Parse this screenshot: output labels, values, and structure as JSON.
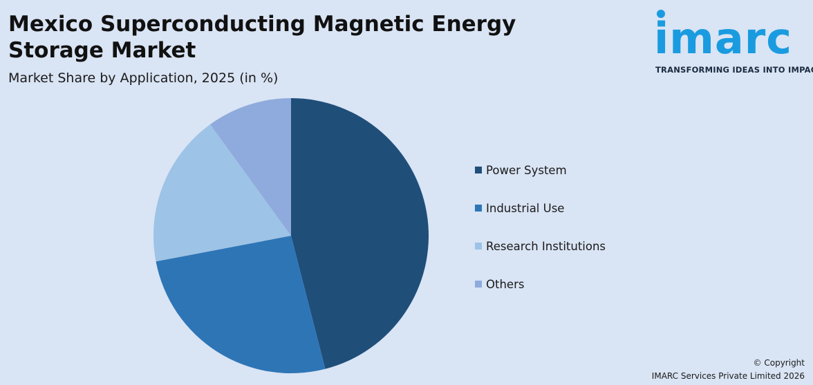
{
  "header": {
    "title": "Mexico Superconducting Magnetic Energy Storage Market",
    "subtitle": "Market Share by Application, 2025 (in %)"
  },
  "logo": {
    "word": "imarc",
    "tagline": "TRANSFORMING IDEAS INTO IMPACT",
    "color": "#1a9be0"
  },
  "chart_data": {
    "type": "pie",
    "title": "Mexico Superconducting Magnetic Energy Storage Market",
    "subtitle": "Market Share by Application, 2025 (in %)",
    "categories": [
      "Power System",
      "Industrial Use",
      "Research Institutions",
      "Others"
    ],
    "values": [
      46,
      26,
      18,
      10
    ],
    "colors": [
      "#1f4e79",
      "#2e75b6",
      "#9dc3e6",
      "#8faadc"
    ],
    "start_angle_deg": 0,
    "direction": "clockwise",
    "legend_position": "right"
  },
  "footer": {
    "copyright_line1": "© Copyright",
    "copyright_line2": "IMARC Services Private Limited 2026"
  }
}
